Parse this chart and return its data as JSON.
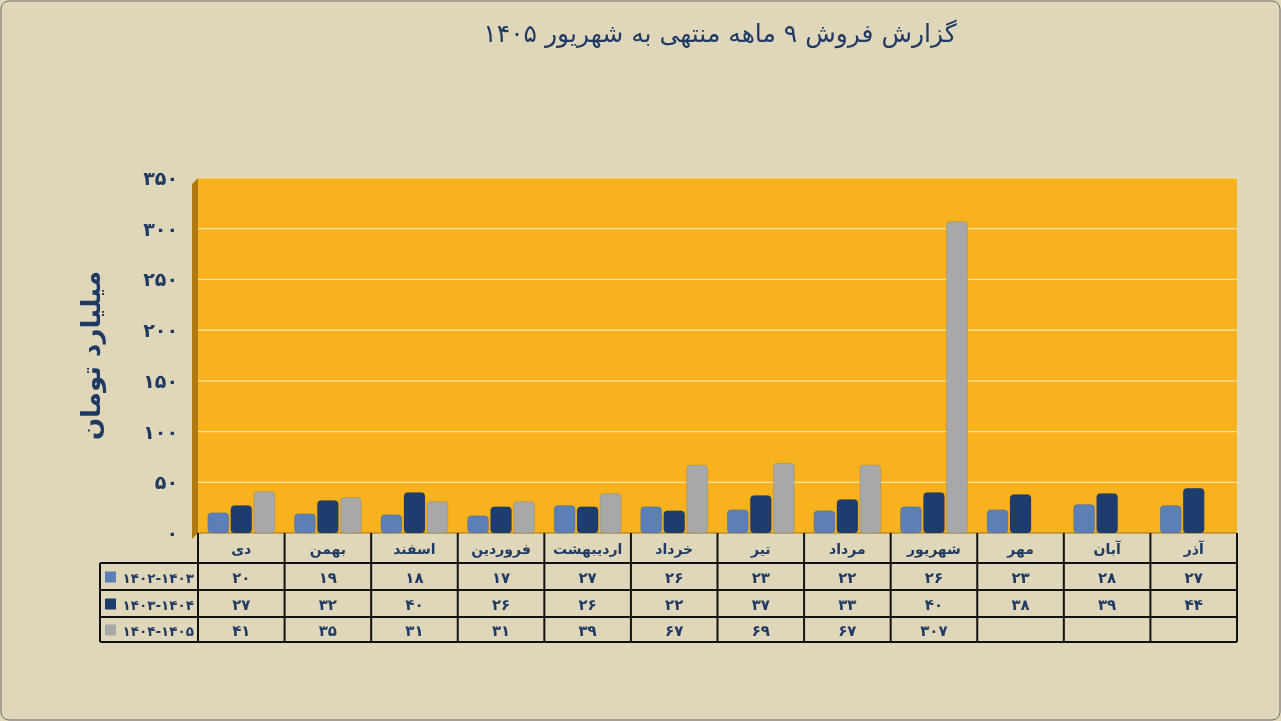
{
  "chart_data": {
    "type": "bar",
    "title": "گزارش  فروش ۹ ماهه منتهی به شهریور ۱۴۰۵",
    "ylabel": "میلیارد تومان",
    "categories": [
      "دی",
      "بهمن",
      "اسفند",
      "فروردین",
      "اردیبهشت",
      "خرداد",
      "تیر",
      "مرداد",
      "شهریور",
      "مهر",
      "آبان",
      "آذر"
    ],
    "series": [
      {
        "name": "۱۴۰۲-۱۴۰۳",
        "color": "#5b80b8",
        "values": [
          20,
          19,
          18,
          17,
          27,
          26,
          23,
          22,
          26,
          23,
          28,
          27
        ],
        "value_labels": [
          "۲۰",
          "۱۹",
          "۱۸",
          "۱۷",
          "۲۷",
          "۲۶",
          "۲۳",
          "۲۲",
          "۲۶",
          "۲۳",
          "۲۸",
          "۲۷"
        ]
      },
      {
        "name": "۱۴۰۳-۱۴۰۴",
        "color": "#1c3d6e",
        "values": [
          27,
          32,
          40,
          26,
          26,
          22,
          37,
          33,
          40,
          38,
          39,
          44
        ],
        "value_labels": [
          "۲۷",
          "۳۲",
          "۴۰",
          "۲۶",
          "۲۶",
          "۲۲",
          "۳۷",
          "۳۳",
          "۴۰",
          "۳۸",
          "۳۹",
          "۴۴"
        ]
      },
      {
        "name": "۱۴۰۴-۱۴۰۵",
        "color": "#a8a8a8",
        "values": [
          41,
          35,
          31,
          31,
          39,
          67,
          69,
          67,
          307,
          null,
          null,
          null
        ],
        "value_labels": [
          "۴۱",
          "۳۵",
          "۳۱",
          "۳۱",
          "۳۹",
          "۶۷",
          "۶۹",
          "۶۷",
          "۳۰۷",
          null,
          null,
          null
        ]
      }
    ],
    "ylim": [
      0,
      350
    ],
    "yticks": [
      {
        "value": 0,
        "label": "۰"
      },
      {
        "value": 50,
        "label": "۵۰"
      },
      {
        "value": 100,
        "label": "۱۰۰"
      },
      {
        "value": 150,
        "label": "۱۵۰"
      },
      {
        "value": 200,
        "label": "۲۰۰"
      },
      {
        "value": 250,
        "label": "۲۵۰"
      },
      {
        "value": 300,
        "label": "۳۰۰"
      },
      {
        "value": 350,
        "label": "۳۵۰"
      }
    ],
    "grid": "y",
    "legend": "bottom"
  }
}
